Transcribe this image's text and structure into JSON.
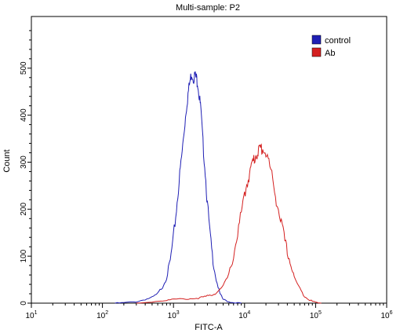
{
  "chart_data": {
    "type": "line",
    "title": "Multi-sample: P2",
    "xlabel": "FITC-A",
    "ylabel": "Count",
    "x_scale": "log10",
    "xlim": [
      10,
      1000000
    ],
    "ylim": [
      0,
      610
    ],
    "x_ticks": [
      {
        "value": 10,
        "base": "10",
        "exp": "1"
      },
      {
        "value": 100,
        "base": "10",
        "exp": "2"
      },
      {
        "value": 1000,
        "base": "10",
        "exp": "3"
      },
      {
        "value": 10000,
        "base": "10",
        "exp": "4"
      },
      {
        "value": 100000,
        "base": "10",
        "exp": "5"
      },
      {
        "value": 1000000,
        "base": "10",
        "exp": "6"
      }
    ],
    "y_ticks": [
      0,
      100,
      200,
      300,
      400,
      500
    ],
    "grid": false,
    "legend_position": "top-right",
    "series": [
      {
        "name": "control",
        "color": "#1f1fb4",
        "x": [
          150,
          200,
          300,
          400,
          500,
          600,
          700,
          800,
          900,
          1000,
          1100,
          1200,
          1300,
          1400,
          1500,
          1600,
          1700,
          1800,
          1900,
          2000,
          2100,
          2200,
          2300,
          2400,
          2600,
          2800,
          3000,
          3300,
          3600,
          4000,
          4500,
          5000,
          6000,
          7000,
          9000
        ],
        "y": [
          0,
          1,
          3,
          8,
          12,
          20,
          35,
          55,
          90,
          140,
          200,
          260,
          310,
          360,
          410,
          445,
          470,
          490,
          480,
          485,
          478,
          470,
          440,
          420,
          340,
          280,
          210,
          140,
          90,
          50,
          20,
          8,
          3,
          1,
          0
        ]
      },
      {
        "name": "Ab",
        "color": "#d42020",
        "x": [
          300,
          500,
          800,
          1000,
          1500,
          2000,
          2500,
          3000,
          3500,
          4000,
          5000,
          6000,
          7000,
          8000,
          9000,
          10000,
          11000,
          12000,
          13000,
          14000,
          15000,
          16000,
          17000,
          18000,
          20000,
          22000,
          25000,
          28000,
          32000,
          36000,
          40000,
          45000,
          50000,
          60000,
          70000,
          80000,
          90000,
          100000,
          120000
        ],
        "y": [
          0,
          3,
          6,
          8,
          9,
          10,
          12,
          15,
          18,
          22,
          35,
          60,
          100,
          150,
          190,
          230,
          260,
          280,
          300,
          310,
          320,
          325,
          330,
          328,
          320,
          300,
          260,
          220,
          180,
          140,
          110,
          80,
          55,
          30,
          15,
          8,
          4,
          2,
          0
        ]
      }
    ]
  }
}
